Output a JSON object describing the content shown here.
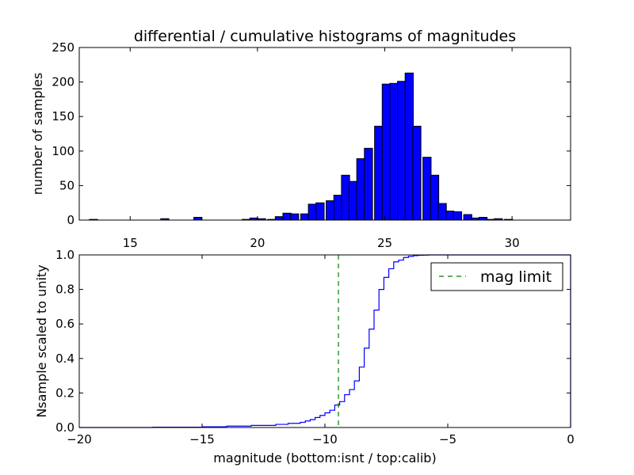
{
  "figure": {
    "title": "differential / cumulative histograms of magnitudes"
  },
  "chart_data": [
    {
      "type": "bar",
      "title": "differential / cumulative histograms of magnitudes",
      "xlabel": "",
      "ylabel": "number of samples",
      "xlim": [
        13.0,
        32.3
      ],
      "ylim": [
        0,
        250
      ],
      "x_tick_labels": [
        "15",
        "20",
        "25",
        "30"
      ],
      "y_tick_labels": [
        "0",
        "50",
        "100",
        "150",
        "200",
        "250"
      ],
      "bar_color": "#0000ff",
      "bin_width": 0.32,
      "bin_starts": [
        13.4,
        16.2,
        17.5,
        19.4,
        19.7,
        20.0,
        20.4,
        20.7,
        21.0,
        21.3,
        21.7,
        22.0,
        22.3,
        22.7,
        23.0,
        23.3,
        23.6,
        23.9,
        24.2,
        24.6,
        24.9,
        25.2,
        25.5,
        25.8,
        26.1,
        26.5,
        26.8,
        27.1,
        27.4,
        27.7,
        28.1,
        28.4,
        28.7,
        29.0,
        29.3,
        29.7
      ],
      "values": [
        1,
        2,
        4,
        1,
        3,
        2,
        1,
        5,
        10,
        9,
        9,
        23,
        25,
        28,
        36,
        65,
        56,
        89,
        104,
        136,
        197,
        198,
        201,
        213,
        136,
        91,
        65,
        24,
        13,
        12,
        8,
        3,
        4,
        1,
        2,
        1
      ]
    },
    {
      "type": "line",
      "title": "",
      "xlabel": "magnitude (bottom:isnt / top:calib)",
      "ylabel": "Nsample scaled to unity",
      "xlim": [
        -20,
        0
      ],
      "ylim": [
        0.0,
        1.0
      ],
      "x_tick_labels": [
        "−20",
        "−15",
        "−10",
        "−5",
        "0"
      ],
      "y_tick_labels": [
        "0.0",
        "0.2",
        "0.4",
        "0.6",
        "0.8",
        "1.0"
      ],
      "series": [
        {
          "name": "",
          "color": "#0000ff",
          "step": true,
          "x": [
            -20.0,
            -17.0,
            -15.0,
            -14.0,
            -13.0,
            -12.0,
            -11.5,
            -11.0,
            -10.8,
            -10.6,
            -10.4,
            -10.2,
            -10.0,
            -9.8,
            -9.6,
            -9.4,
            -9.2,
            -9.0,
            -8.8,
            -8.6,
            -8.4,
            -8.2,
            -8.0,
            -7.8,
            -7.6,
            -7.4,
            -7.2,
            -7.0,
            -6.8,
            -6.6,
            -6.4,
            -6.2,
            -6.0,
            -5.8,
            -5.6,
            -5.0,
            0.0
          ],
          "y": [
            0.0,
            0.002,
            0.004,
            0.008,
            0.012,
            0.018,
            0.024,
            0.03,
            0.038,
            0.046,
            0.058,
            0.07,
            0.085,
            0.1,
            0.13,
            0.15,
            0.19,
            0.22,
            0.27,
            0.35,
            0.46,
            0.57,
            0.68,
            0.8,
            0.87,
            0.92,
            0.96,
            0.97,
            0.985,
            0.992,
            0.996,
            0.998,
            0.999,
            1.0,
            1.0,
            1.0,
            1.0
          ]
        },
        {
          "name": "mag limit",
          "color": "#008000",
          "dashed": true,
          "vertical_x": -9.45
        }
      ],
      "legend_placement": "top-right"
    }
  ]
}
